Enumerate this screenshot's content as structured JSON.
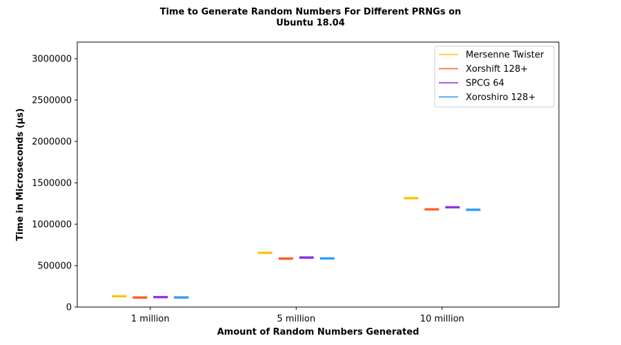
{
  "chart_data": {
    "type": "box",
    "title": [
      "Time to Generate Random Numbers For Different PRNGs on",
      "Ubuntu 18.04"
    ],
    "xlabel": "Amount of Random Numbers Generated",
    "ylabel": "Time in Microseconds (µs)",
    "categories": [
      "1 million",
      "5 million",
      "10 million"
    ],
    "ylim": [
      0,
      3200000
    ],
    "yticks": [
      0,
      500000,
      1000000,
      1500000,
      2000000,
      2500000,
      3000000
    ],
    "grid": false,
    "legend_position": "top-right",
    "series": [
      {
        "name": "Mersenne Twister",
        "color": "#ffc000",
        "values": [
          130000,
          655000,
          1315000
        ]
      },
      {
        "name": "Xorshift 128+",
        "color": "#ff5722",
        "values": [
          115000,
          585000,
          1180000
        ]
      },
      {
        "name": "SPCG 64",
        "color": "#8a2be2",
        "values": [
          120000,
          598000,
          1205000
        ]
      },
      {
        "name": "Xoroshiro 128+",
        "color": "#2196f3",
        "values": [
          116000,
          588000,
          1175000
        ]
      }
    ]
  }
}
